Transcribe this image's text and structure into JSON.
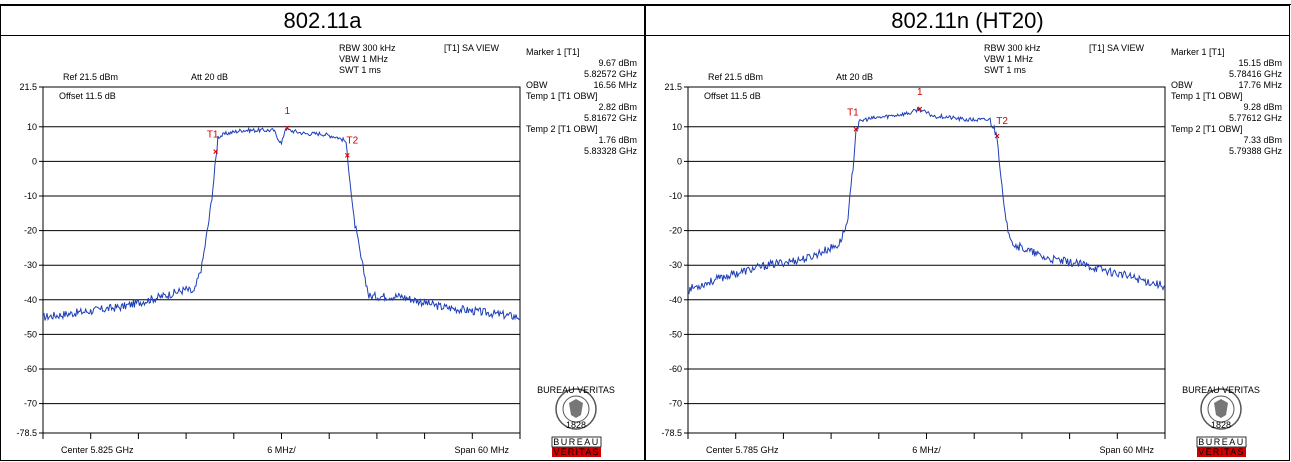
{
  "chart_data": [
    {
      "type": "line",
      "title": "802.11a",
      "ref_level": "Ref 21.5 dBm",
      "attenuation": "Att  20 dB",
      "offset": "Offset 11.5 dB",
      "settings": [
        "RBW 300 kHz",
        "VBW 1 MHz",
        "SWT 1 ms"
      ],
      "view_label": "[T1] SA VIEW",
      "marker_panel": [
        {
          "label": "Marker 1 [T1]",
          "value": ""
        },
        {
          "label": "",
          "value": "9.67 dBm"
        },
        {
          "label": "",
          "value": "5.82572 GHz"
        },
        {
          "label": "OBW",
          "value": "16.56 MHz"
        },
        {
          "label": "Temp 1 [T1 OBW]",
          "value": ""
        },
        {
          "label": "",
          "value": "2.82 dBm"
        },
        {
          "label": "",
          "value": "5.81672 GHz"
        },
        {
          "label": "Temp 2 [T1 OBW]",
          "value": ""
        },
        {
          "label": "",
          "value": "1.76 dBm"
        },
        {
          "label": "",
          "value": "5.83328 GHz"
        }
      ],
      "footer_center": "Center 5.825 GHz",
      "footer_div": "6 MHz/",
      "footer_span": "Span 60 MHz",
      "y_ticks": [
        "21.5",
        "10",
        "0",
        "-10",
        "-20",
        "-30",
        "-40",
        "-50",
        "-60",
        "-70",
        "-78.5"
      ],
      "y_tick_values": [
        21.5,
        10,
        0,
        -10,
        -20,
        -30,
        -40,
        -50,
        -60,
        -70,
        -78.5
      ],
      "ylim": [
        -78.5,
        21.5
      ],
      "xlim_mhz": [
        -30,
        30
      ],
      "grid": true,
      "x_mhz": [
        -30,
        -25,
        -20,
        -15,
        -12,
        -11,
        -10,
        -9,
        -8.5,
        -8.2,
        -8,
        -7,
        -5,
        -3,
        -1,
        0,
        0.5,
        1,
        3,
        5,
        7,
        8,
        8.3,
        8.6,
        9,
        10,
        11,
        12,
        15,
        20,
        25,
        30
      ],
      "y_dbm": [
        -45,
        -43.5,
        -42,
        -39,
        -37,
        -38,
        -30,
        -15,
        -5,
        2,
        7,
        8,
        9,
        9,
        9,
        5,
        9.67,
        9,
        8,
        8,
        7,
        6,
        2,
        -5,
        -15,
        -28,
        -39,
        -39,
        -39,
        -42,
        -43.5,
        -45
      ],
      "markers": [
        {
          "label": "1",
          "x_mhz": 0.72,
          "y_dbm": 9.67
        },
        {
          "label": "T1",
          "x_mhz": -8.28,
          "y_dbm": 2.82
        },
        {
          "label": "T2",
          "x_mhz": 8.28,
          "y_dbm": 1.76
        }
      ],
      "logo_top": "BUREAU VERITAS",
      "logo_year": "1828",
      "logo_bottom_1": "BUREAU",
      "logo_bottom_2": "VERITAS"
    },
    {
      "type": "line",
      "title": "802.11n (HT20)",
      "ref_level": "Ref 21.5 dBm",
      "attenuation": "Att  20 dB",
      "offset": "Offset 11.5 dB",
      "settings": [
        "RBW 300 kHz",
        "VBW 1 MHz",
        "SWT 1 ms"
      ],
      "view_label": "[T1] SA VIEW",
      "marker_panel": [
        {
          "label": "Marker 1 [T1]",
          "value": ""
        },
        {
          "label": "",
          "value": "15.15 dBm"
        },
        {
          "label": "",
          "value": "5.78416 GHz"
        },
        {
          "label": "OBW",
          "value": "17.76 MHz"
        },
        {
          "label": "Temp 1 [T1 OBW]",
          "value": ""
        },
        {
          "label": "",
          "value": "9.28 dBm"
        },
        {
          "label": "",
          "value": "5.77612 GHz"
        },
        {
          "label": "Temp 2 [T1 OBW]",
          "value": ""
        },
        {
          "label": "",
          "value": "7.33 dBm"
        },
        {
          "label": "",
          "value": "5.79388 GHz"
        }
      ],
      "footer_center": "Center 5.785 GHz",
      "footer_div": "6 MHz/",
      "footer_span": "Span 60 MHz",
      "y_ticks": [
        "21.5",
        "10",
        "0",
        "-10",
        "-20",
        "-30",
        "-40",
        "-50",
        "-60",
        "-70",
        "-78.5"
      ],
      "y_tick_values": [
        21.5,
        10,
        0,
        -10,
        -20,
        -30,
        -40,
        -50,
        -60,
        -70,
        -78.5
      ],
      "ylim": [
        -78.5,
        21.5
      ],
      "xlim_mhz": [
        -30,
        30
      ],
      "grid": true,
      "x_mhz": [
        -30,
        -25,
        -20,
        -15,
        -12,
        -11,
        -10,
        -9.5,
        -9,
        -8.9,
        -8,
        -5,
        -2,
        -1,
        0,
        1,
        2,
        5,
        8,
        8.9,
        9,
        9.5,
        10,
        11,
        12,
        15,
        20,
        25,
        30
      ],
      "y_dbm": [
        -37,
        -33,
        -30,
        -28,
        -25,
        -24,
        -18,
        -8,
        5,
        9.3,
        12,
        13,
        14,
        15.15,
        14,
        13,
        13,
        12,
        12,
        7.3,
        5,
        -8,
        -18,
        -24,
        -25,
        -28,
        -30,
        -33,
        -36
      ],
      "markers": [
        {
          "label": "1",
          "x_mhz": -0.84,
          "y_dbm": 15.15
        },
        {
          "label": "T1",
          "x_mhz": -8.88,
          "y_dbm": 9.28
        },
        {
          "label": "T2",
          "x_mhz": 8.88,
          "y_dbm": 7.33
        }
      ],
      "logo_top": "BUREAU VERITAS",
      "logo_year": "1828",
      "logo_bottom_1": "BUREAU",
      "logo_bottom_2": "VERITAS"
    }
  ]
}
